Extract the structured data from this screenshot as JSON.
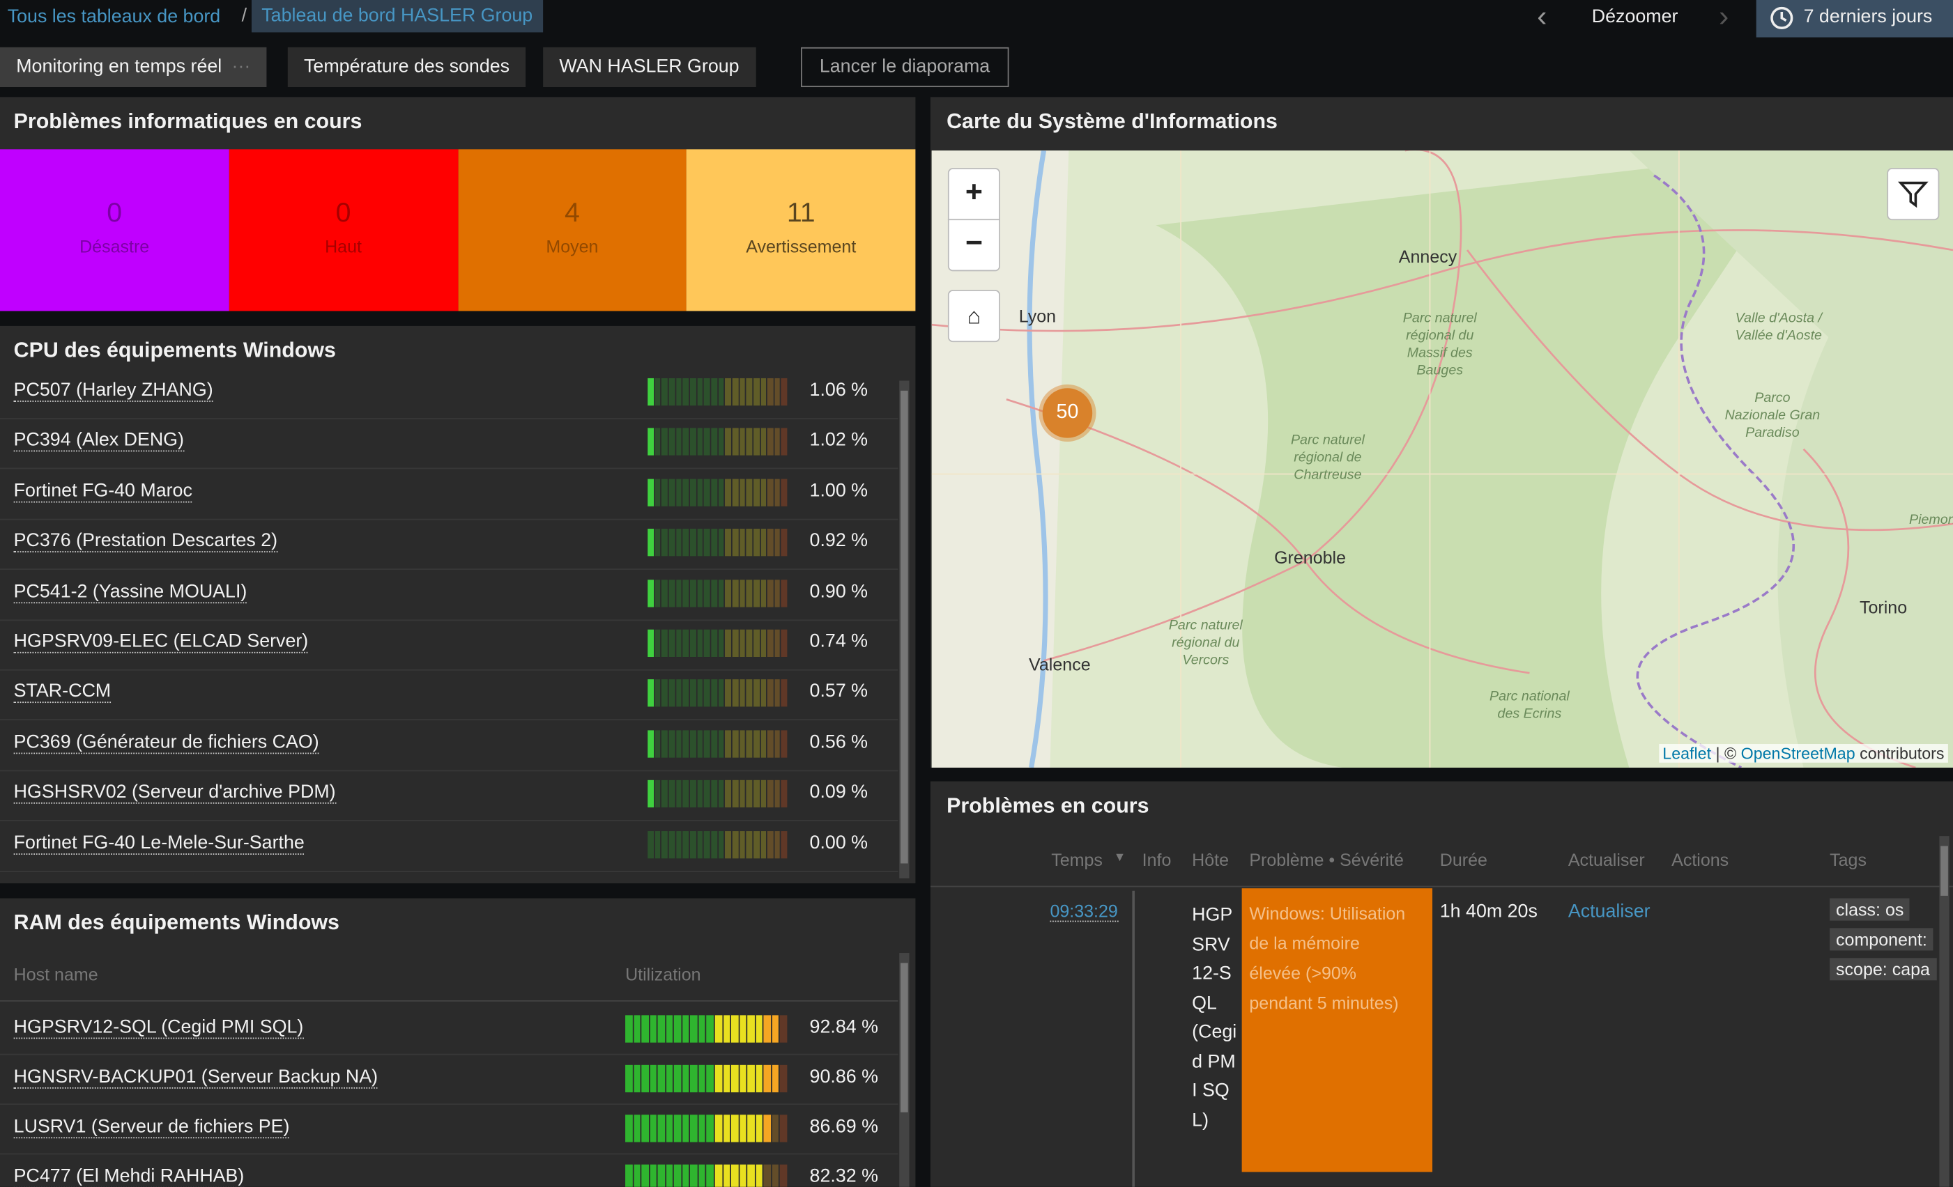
{
  "breadcrumb": [
    "Tous les tableaux de bord",
    "Tableau de bord HASLER Group"
  ],
  "controls": {
    "zoom_out": "Dézoomer",
    "period": "7 derniers jours"
  },
  "tabs": [
    "Monitoring en temps réel",
    "Température des sondes",
    "WAN HASLER Group"
  ],
  "slideshow": "Lancer le diaporama",
  "severity_panel": {
    "title": "Problèmes informatiques en cours",
    "items": [
      {
        "count": 0,
        "label": "Désastre",
        "color": "#c000ff"
      },
      {
        "count": 0,
        "label": "Haut",
        "color": "#ff0000"
      },
      {
        "count": 4,
        "label": "Moyen",
        "color": "#e07000"
      },
      {
        "count": 11,
        "label": "Avertissement",
        "color": "#ffc759"
      }
    ]
  },
  "cpu_panel": {
    "title": "CPU des équipements Windows",
    "rows": [
      {
        "name": "PC507 (Harley ZHANG)",
        "value": 1.06,
        "label": "1.06 %"
      },
      {
        "name": "PC394 (Alex DENG)",
        "value": 1.02,
        "label": "1.02 %"
      },
      {
        "name": "Fortinet FG-40 Maroc",
        "value": 1.0,
        "label": "1.00 %"
      },
      {
        "name": "PC376 (Prestation Descartes 2)",
        "value": 0.92,
        "label": "0.92 %"
      },
      {
        "name": "PC541-2 (Yassine MOUALI)",
        "value": 0.9,
        "label": "0.90 %"
      },
      {
        "name": "HGPSRV09-ELEC (ELCAD Server)",
        "value": 0.74,
        "label": "0.74 %"
      },
      {
        "name": "STAR-CCM",
        "value": 0.57,
        "label": "0.57 %"
      },
      {
        "name": "PC369 (Générateur de fichiers CAO)",
        "value": 0.56,
        "label": "0.56 %"
      },
      {
        "name": "HGSHSRV02 (Serveur d'archive PDM)",
        "value": 0.09,
        "label": "0.09 %"
      },
      {
        "name": "Fortinet FG-40 Le-Mele-Sur-Sarthe",
        "value": 0.0,
        "label": "0.00 %"
      }
    ]
  },
  "ram_panel": {
    "title": "RAM des équipements Windows",
    "columns": [
      "Host name",
      "Utilization"
    ],
    "rows": [
      {
        "name": "HGPSRV12-SQL (Cegid PMI SQL)",
        "value": 92.84,
        "label": "92.84 %"
      },
      {
        "name": "HGNSRV-BACKUP01 (Serveur Backup NA)",
        "value": 90.86,
        "label": "90.86 %"
      },
      {
        "name": "LUSRV1 (Serveur de fichiers PE)",
        "value": 86.69,
        "label": "86.69 %"
      },
      {
        "name": "PC477 (El Mehdi RAHHAB)",
        "value": 82.32,
        "label": "82.32 %"
      }
    ]
  },
  "map_panel": {
    "title": "Carte du Système d'Informations",
    "places": [
      "Lyon",
      "Annecy",
      "Grenoble",
      "Valence",
      "Torino",
      "Parc naturel régional du Massif des Bauges",
      "Parc naturel régional de Chartreuse",
      "Parc naturel régional du Vercors",
      "Parc national des Ecrins",
      "Valle d'Aosta / Vallée d'Aoste",
      "Parco Nazionale Gran Paradiso",
      "Piemonte"
    ],
    "cluster": 50,
    "attribution": {
      "leaflet": "Leaflet",
      "separator": "| ©",
      "osm": "OpenStreetMap",
      "rest": "contributors"
    }
  },
  "problems_panel": {
    "title": "Problèmes en cours",
    "columns": [
      "Temps",
      "Info",
      "Hôte",
      "Problème • Sévérité",
      "Durée",
      "Actualiser",
      "Actions",
      "Tags"
    ],
    "rows": [
      {
        "time": "09:33:29",
        "host": "HGPSRV12-SQL (Cegid PMI SQL)",
        "problem": "Windows: Utilisation de la mémoire élevée (>90% pendant 5 minutes)",
        "duration": "1h 40m 20s",
        "update": "Actualiser",
        "tags": [
          "class: os",
          "component:",
          "scope: capa"
        ]
      }
    ]
  }
}
